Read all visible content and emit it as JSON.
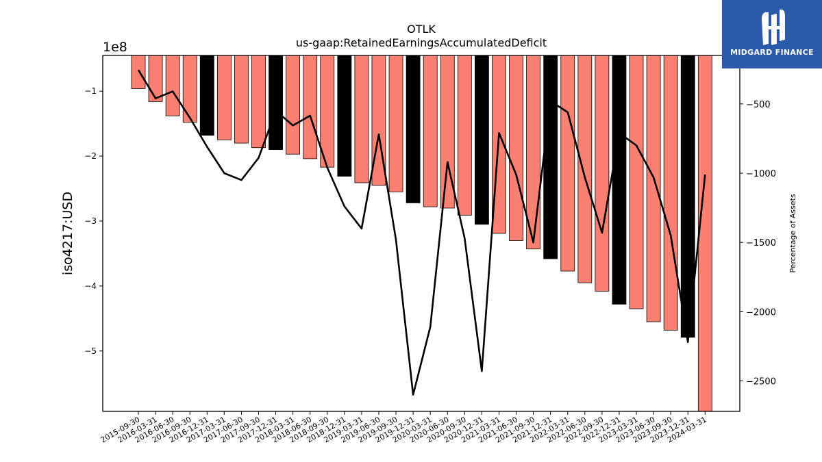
{
  "brand": {
    "name": "MIDGARD FINANCE",
    "bg": "#2a5aa9"
  },
  "chart_data": {
    "type": "bar",
    "title": "OTLK",
    "subtitle": "us-gaap:RetainedEarningsAccumulatedDeficit",
    "ylabel": "iso4217:USD",
    "y_multiplier_label": "1e8",
    "y2label": "Percentage of Assets",
    "ylim": [
      -5.93,
      -0.45
    ],
    "yticks": [
      -1,
      -2,
      -3,
      -4,
      -5
    ],
    "ytick_labels": [
      "−1",
      "−2",
      "−3",
      "−4",
      "−5"
    ],
    "y2lim": [
      -2720,
      -150
    ],
    "y2ticks": [
      -500,
      -1000,
      -1500,
      -2000,
      -2500
    ],
    "y2tick_labels": [
      "−500",
      "−1000",
      "−1500",
      "−2000",
      "−2500"
    ],
    "grid": false,
    "colors": {
      "bar": "#fa8072",
      "bar_highlight": "#000000",
      "edge": "#000000",
      "line": "#000000"
    },
    "categories": [
      "2015-09-30",
      "2016-03-31",
      "2016-06-30",
      "2016-09-30",
      "2016-12-31",
      "2017-03-31",
      "2017-06-30",
      "2017-09-30",
      "2017-12-31",
      "2018-03-31",
      "2018-06-30",
      "2018-09-30",
      "2018-12-31",
      "2019-03-31",
      "2019-06-30",
      "2019-09-30",
      "2019-12-31",
      "2020-03-31",
      "2020-06-30",
      "2020-09-30",
      "2020-12-31",
      "2021-03-31",
      "2021-06-30",
      "2021-09-30",
      "2021-12-31",
      "2022-03-31",
      "2022-06-30",
      "2022-09-30",
      "2022-12-31",
      "2023-03-31",
      "2023-06-30",
      "2023-09-30",
      "2023-12-31",
      "2024-03-31"
    ],
    "series": [
      {
        "role": "retained_earnings_bars",
        "values": [
          -0.96,
          -1.16,
          -1.38,
          -1.48,
          -1.68,
          -1.75,
          -1.8,
          -1.87,
          -1.9,
          -1.97,
          -2.04,
          -2.17,
          -2.31,
          -2.41,
          -2.45,
          -2.55,
          -2.72,
          -2.78,
          -2.8,
          -2.91,
          -3.05,
          -3.19,
          -3.3,
          -3.43,
          -3.58,
          -3.77,
          -3.95,
          -4.08,
          -4.28,
          -4.35,
          -4.55,
          -4.68,
          -4.79,
          -5.95
        ],
        "highlight": [
          false,
          false,
          false,
          false,
          true,
          false,
          false,
          false,
          true,
          false,
          false,
          false,
          true,
          false,
          false,
          false,
          true,
          false,
          false,
          false,
          true,
          false,
          false,
          false,
          true,
          false,
          false,
          false,
          true,
          false,
          false,
          false,
          true,
          false
        ]
      },
      {
        "name": "Percentage of Assets",
        "role": "percentage_of_assets_line",
        "axis": "right",
        "values": [
          -255,
          -460,
          -410,
          -600,
          -810,
          -1000,
          -1050,
          -890,
          -550,
          -655,
          -585,
          -960,
          -1240,
          -1400,
          -720,
          -1480,
          -2600,
          -2110,
          -920,
          -1470,
          -2430,
          -710,
          -1010,
          -1500,
          -480,
          -560,
          -1030,
          -1430,
          -710,
          -800,
          -1030,
          -1450,
          -2220,
          -1010
        ]
      }
    ]
  }
}
